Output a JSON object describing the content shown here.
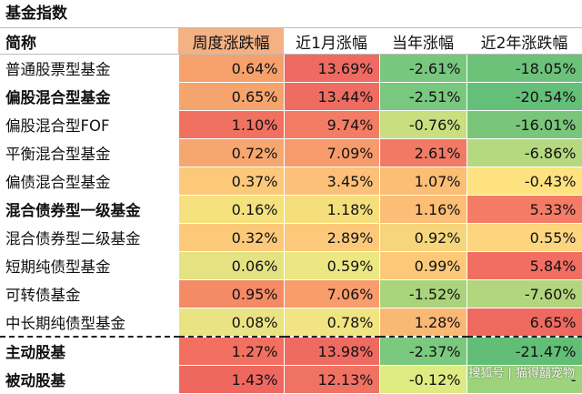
{
  "title": "基金指数",
  "headers": [
    "简称",
    "周度涨跌幅",
    "近1月涨幅",
    "当年涨幅",
    "近2年涨跌幅"
  ],
  "header_highlight_color": "#f4b183",
  "rows": [
    {
      "name": "普通股票型基金",
      "bold": false,
      "values": [
        "0.64%",
        "13.69%",
        "-2.61%",
        "-18.05%"
      ],
      "colors": [
        "#f6a16c",
        "#ee6a62",
        "#77c77f",
        "#6dc27a"
      ]
    },
    {
      "name": "偏股混合型基金",
      "bold": true,
      "values": [
        "0.65%",
        "13.44%",
        "-2.51%",
        "-20.54%"
      ],
      "colors": [
        "#f6a46d",
        "#ee6c62",
        "#79c87f",
        "#64bf78"
      ]
    },
    {
      "name": "偏股混合型FOF",
      "bold": false,
      "values": [
        "1.10%",
        "9.74%",
        "-0.76%",
        "-16.01%"
      ],
      "colors": [
        "#f0715f",
        "#f27d64",
        "#c8df80",
        "#79c67b"
      ]
    },
    {
      "name": "平衡混合型基金",
      "bold": false,
      "values": [
        "0.72%",
        "7.09%",
        "2.61%",
        "-6.86%"
      ],
      "colors": [
        "#f6a66f",
        "#f79b6c",
        "#f17a65",
        "#b5d97f"
      ]
    },
    {
      "name": "偏债混合型基金",
      "bold": false,
      "values": [
        "0.37%",
        "3.45%",
        "1.07%",
        "-0.43%"
      ],
      "colors": [
        "#fbc979",
        "#fcc078",
        "#fcbd75",
        "#fde27f"
      ]
    },
    {
      "name": "混合债券型一级基金",
      "bold": true,
      "values": [
        "0.16%",
        "1.18%",
        "1.16%",
        "5.33%"
      ],
      "colors": [
        "#f5e27e",
        "#f5df7d",
        "#fcbd76",
        "#f47b66"
      ]
    },
    {
      "name": "混合债券型二级基金",
      "bold": false,
      "values": [
        "0.32%",
        "2.89%",
        "0.92%",
        "0.55%"
      ],
      "colors": [
        "#fcc97a",
        "#fcc97a",
        "#f7d57c",
        "#fdd57f"
      ]
    },
    {
      "name": "短期纯债型基金",
      "bold": false,
      "values": [
        "0.06%",
        "0.59%",
        "0.99%",
        "5.84%"
      ],
      "colors": [
        "#e5e283",
        "#ece683",
        "#fcc978",
        "#f26e62"
      ]
    },
    {
      "name": "可转债基金",
      "bold": false,
      "values": [
        "0.95%",
        "7.06%",
        "-1.52%",
        "-7.60%"
      ],
      "colors": [
        "#f58a66",
        "#f89d6b",
        "#aad47c",
        "#b2d67e"
      ]
    },
    {
      "name": "中长期纯债型基金",
      "bold": false,
      "values": [
        "0.08%",
        "0.78%",
        "1.28%",
        "6.65%"
      ],
      "colors": [
        "#eae383",
        "#f0e483",
        "#fab875",
        "#ee6a61"
      ]
    },
    {
      "name": "主动股基",
      "bold": true,
      "separator": true,
      "values": [
        "1.27%",
        "13.98%",
        "-2.37%",
        "-21.47%"
      ],
      "colors": [
        "#f2705f",
        "#ee6b62",
        "#7bc97f",
        "#62be77"
      ]
    },
    {
      "name": "被动股基",
      "bold": true,
      "values": [
        "1.43%",
        "12.13%",
        "-0.12%",
        "-"
      ],
      "colors": [
        "#ee6860",
        "#ef7263",
        "#ddeb83",
        "#9ed37e"
      ]
    }
  ],
  "watermark": "搜狐号 | 猫得囍宠物"
}
